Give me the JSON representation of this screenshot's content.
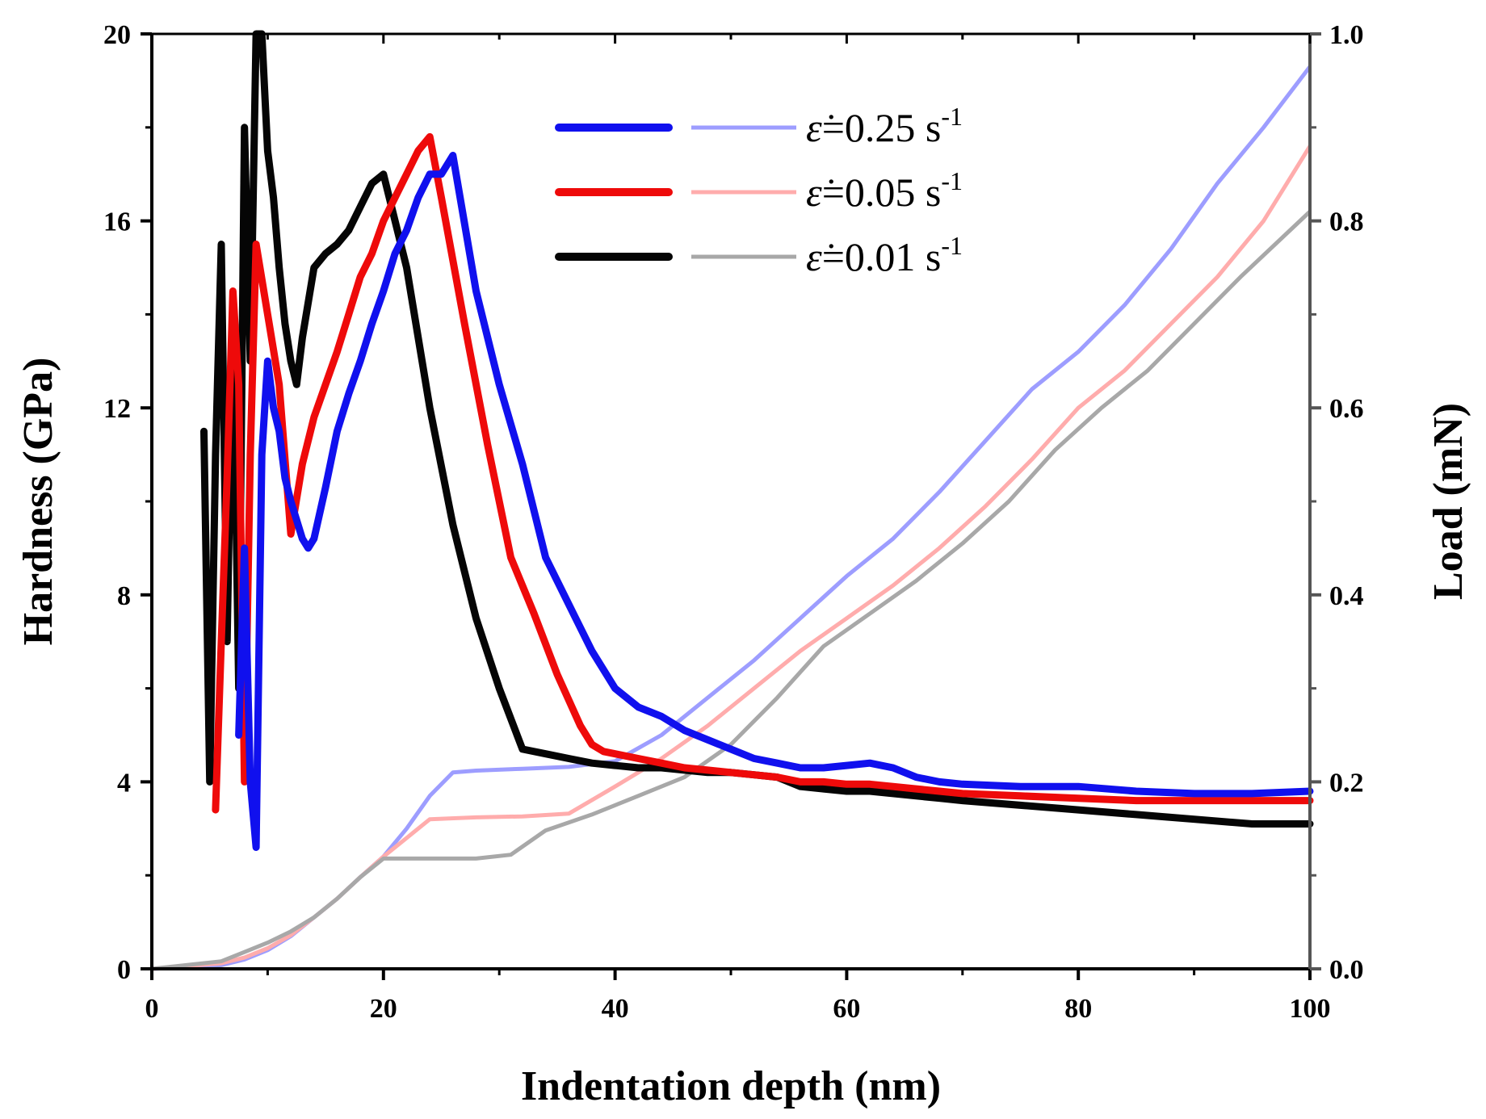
{
  "chart_data": {
    "type": "line",
    "xlabel": "Indentation depth (nm)",
    "ylabel": "Hardness (GPa)",
    "y2label": "Load (mN)",
    "xlim": [
      0,
      100
    ],
    "ylim": [
      0,
      20
    ],
    "y2lim": [
      0.0,
      1.0
    ],
    "xticks": [
      "0",
      "20",
      "40",
      "60",
      "80",
      "100"
    ],
    "yticks": [
      "0",
      "4",
      "8",
      "12",
      "16",
      "20"
    ],
    "y2ticks": [
      "0.0",
      "0.2",
      "0.4",
      "0.6",
      "0.8",
      "1.0"
    ],
    "grid": false,
    "legend_position": "top-center",
    "legend": [
      {
        "symbol": "ε̇",
        "text": "=0.25 s",
        "exp": "-1",
        "hardness_color": "#1010ee",
        "load_color": "#9d9dff"
      },
      {
        "symbol": "ε̇",
        "text": "=0.05 s",
        "exp": "-1",
        "hardness_color": "#ee0a0a",
        "load_color": "#ffacac"
      },
      {
        "symbol": "ε̇",
        "text": "=0.01 s",
        "exp": "-1",
        "hardness_color": "#050505",
        "load_color": "#a8a8a8"
      }
    ],
    "hardness_series": [
      {
        "color": "#1010ee",
        "axis": "left",
        "x": [
          7.5,
          8.0,
          8.5,
          9.0,
          9.5,
          10.0,
          10.5,
          11.0,
          11.5,
          12.0,
          12.5,
          13.0,
          13.5,
          14.0,
          15.0,
          16.0,
          17.0,
          18.0,
          19.0,
          20.0,
          21.0,
          22.0,
          23.0,
          24.0,
          25.0,
          26.0,
          28.0,
          30.0,
          32.0,
          34.0,
          36.0,
          38.0,
          40.0,
          42.0,
          44.0,
          46.0,
          48.0,
          50.0,
          52.0,
          54.0,
          56.0,
          58.0,
          60.0,
          62.0,
          64.0,
          66.0,
          68.0,
          70.0,
          75.0,
          80.0,
          85.0,
          90.0,
          95.0,
          100.0
        ],
        "y": [
          5.0,
          9.0,
          4.0,
          2.6,
          11.0,
          13.0,
          12.0,
          11.5,
          10.5,
          10.0,
          9.6,
          9.2,
          9.0,
          9.2,
          10.3,
          11.5,
          12.3,
          13.0,
          13.8,
          14.5,
          15.3,
          15.8,
          16.5,
          17.0,
          17.0,
          17.4,
          14.5,
          12.5,
          10.8,
          8.8,
          7.8,
          6.8,
          6.0,
          5.6,
          5.4,
          5.1,
          4.9,
          4.7,
          4.5,
          4.4,
          4.3,
          4.3,
          4.35,
          4.4,
          4.3,
          4.1,
          4.0,
          3.95,
          3.9,
          3.9,
          3.8,
          3.75,
          3.75,
          3.8
        ]
      },
      {
        "color": "#ee0a0a",
        "axis": "left",
        "x": [
          5.5,
          6.0,
          6.5,
          7.0,
          7.5,
          8.0,
          8.5,
          9.0,
          10.0,
          11.0,
          12.0,
          13.0,
          14.0,
          15.0,
          16.0,
          17.0,
          18.0,
          19.0,
          20.0,
          21.0,
          22.0,
          23.0,
          24.0,
          25.0,
          27.0,
          29.0,
          31.0,
          33.0,
          35.0,
          37.0,
          38.0,
          39.0,
          40.0,
          42.0,
          44.0,
          46.0,
          48.0,
          50.0,
          52.0,
          54.0,
          56.0,
          58.0,
          60.0,
          62.0,
          64.0,
          66.0,
          68.0,
          70.0,
          75.0,
          80.0,
          85.0,
          90.0,
          95.0,
          100.0
        ],
        "y": [
          3.4,
          7.0,
          10.5,
          14.5,
          12.5,
          4.0,
          11.0,
          15.5,
          14.0,
          12.5,
          9.3,
          10.8,
          11.8,
          12.5,
          13.2,
          14.0,
          14.8,
          15.3,
          16.0,
          16.5,
          17.0,
          17.5,
          17.8,
          16.5,
          13.8,
          11.2,
          8.8,
          7.6,
          6.3,
          5.2,
          4.8,
          4.65,
          4.6,
          4.5,
          4.4,
          4.3,
          4.25,
          4.2,
          4.15,
          4.1,
          4.0,
          4.0,
          3.95,
          3.95,
          3.9,
          3.85,
          3.8,
          3.75,
          3.7,
          3.65,
          3.6,
          3.6,
          3.6,
          3.6
        ]
      },
      {
        "color": "#050505",
        "axis": "left",
        "x": [
          4.5,
          5.0,
          5.5,
          6.0,
          6.5,
          7.0,
          7.5,
          8.0,
          8.5,
          9.0,
          9.5,
          10.0,
          10.5,
          11.0,
          11.5,
          12.0,
          12.5,
          13.0,
          14.0,
          15.0,
          16.0,
          17.0,
          18.0,
          19.0,
          20.0,
          22.0,
          24.0,
          26.0,
          28.0,
          30.0,
          32.0,
          34.0,
          36.0,
          38.0,
          40.0,
          42.0,
          44.0,
          46.0,
          48.0,
          50.0,
          52.0,
          54.0,
          56.0,
          58.0,
          60.0,
          62.0,
          64.0,
          66.0,
          68.0,
          70.0,
          75.0,
          80.0,
          85.0,
          90.0,
          95.0,
          100.0
        ],
        "y": [
          11.5,
          4.0,
          11.0,
          15.5,
          7.0,
          14.0,
          6.0,
          18.0,
          13.0,
          20.0,
          20.0,
          17.5,
          16.5,
          15.0,
          13.8,
          13.0,
          12.5,
          13.5,
          15.0,
          15.3,
          15.5,
          15.8,
          16.3,
          16.8,
          17.0,
          15.0,
          12.0,
          9.5,
          7.5,
          6.0,
          4.7,
          4.6,
          4.5,
          4.4,
          4.35,
          4.3,
          4.3,
          4.25,
          4.2,
          4.2,
          4.15,
          4.1,
          3.9,
          3.85,
          3.8,
          3.8,
          3.75,
          3.7,
          3.65,
          3.6,
          3.5,
          3.4,
          3.3,
          3.2,
          3.1,
          3.1
        ]
      }
    ],
    "load_series": [
      {
        "color": "#9d9dff",
        "axis": "right",
        "x": [
          0,
          6,
          8,
          10,
          12,
          14,
          16,
          18,
          20,
          22,
          24,
          26,
          28,
          32,
          36,
          40,
          44,
          48,
          52,
          56,
          60,
          64,
          68,
          72,
          76,
          80,
          84,
          88,
          92,
          96,
          100
        ],
        "y": [
          0.0,
          0.004,
          0.01,
          0.02,
          0.035,
          0.055,
          0.075,
          0.098,
          0.12,
          0.15,
          0.185,
          0.21,
          0.212,
          0.214,
          0.216,
          0.222,
          0.25,
          0.29,
          0.33,
          0.375,
          0.42,
          0.46,
          0.51,
          0.565,
          0.62,
          0.66,
          0.71,
          0.77,
          0.84,
          0.9,
          0.965
        ]
      },
      {
        "color": "#ffacac",
        "axis": "right",
        "x": [
          0,
          6,
          8,
          10,
          12,
          14,
          16,
          18,
          20,
          22,
          24,
          28,
          32,
          36,
          40,
          44,
          48,
          52,
          56,
          60,
          64,
          68,
          72,
          76,
          80,
          84,
          88,
          92,
          96,
          100
        ],
        "y": [
          0.0,
          0.006,
          0.012,
          0.022,
          0.036,
          0.055,
          0.075,
          0.098,
          0.12,
          0.14,
          0.16,
          0.162,
          0.163,
          0.166,
          0.195,
          0.225,
          0.26,
          0.3,
          0.34,
          0.375,
          0.41,
          0.45,
          0.495,
          0.545,
          0.6,
          0.64,
          0.69,
          0.74,
          0.8,
          0.88
        ]
      },
      {
        "color": "#a8a8a8",
        "axis": "right",
        "x": [
          0,
          6,
          8,
          10,
          12,
          14,
          16,
          18,
          20,
          24,
          28,
          31,
          34,
          38,
          42,
          46,
          50,
          54,
          58,
          62,
          66,
          70,
          74,
          78,
          82,
          86,
          90,
          94,
          100
        ],
        "y": [
          0.0,
          0.008,
          0.018,
          0.028,
          0.04,
          0.055,
          0.075,
          0.098,
          0.118,
          0.118,
          0.118,
          0.122,
          0.148,
          0.165,
          0.185,
          0.205,
          0.24,
          0.29,
          0.345,
          0.38,
          0.415,
          0.455,
          0.5,
          0.555,
          0.6,
          0.64,
          0.69,
          0.74,
          0.81
        ]
      }
    ]
  }
}
